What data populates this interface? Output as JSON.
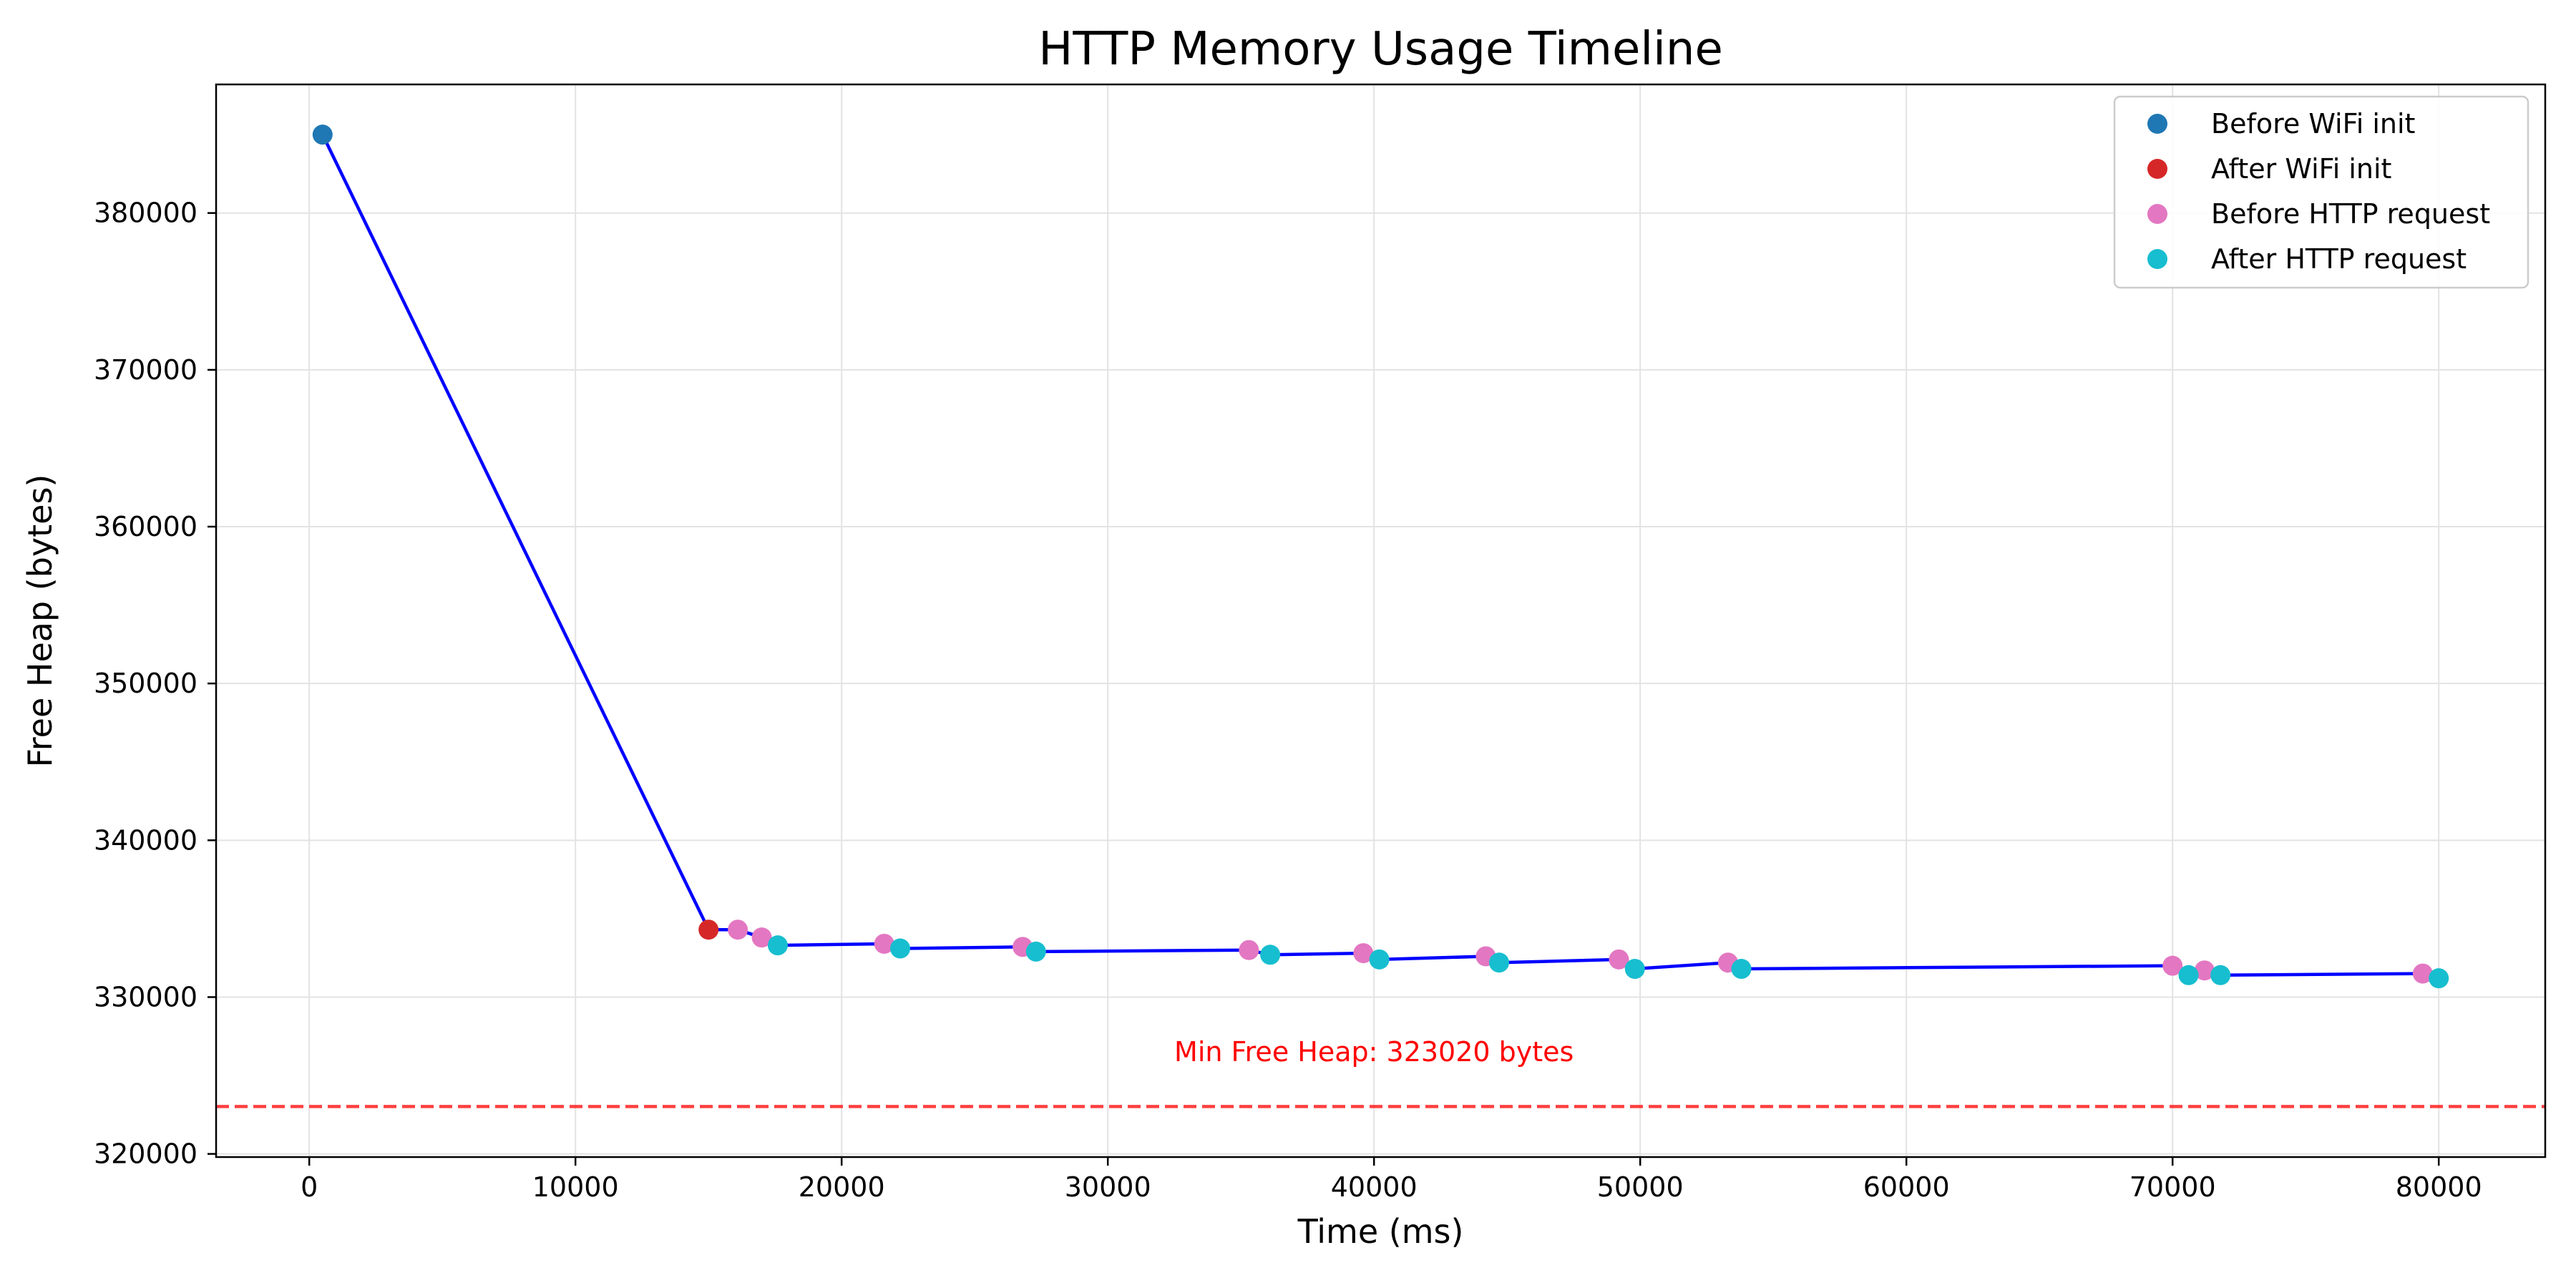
{
  "chart_data": {
    "type": "line",
    "title": "HTTP Memory Usage Timeline",
    "xlabel": "Time (ms)",
    "ylabel": "Free Heap (bytes)",
    "xlim": [
      -3500,
      84000
    ],
    "ylim": [
      319800,
      388200
    ],
    "xticks": [
      0,
      10000,
      20000,
      30000,
      40000,
      50000,
      60000,
      70000,
      80000
    ],
    "yticks": [
      320000,
      330000,
      340000,
      350000,
      360000,
      370000,
      380000
    ],
    "grid": true,
    "legend_position": "top-right",
    "line": {
      "color": "#0000ff",
      "points": [
        [
          500,
          385000
        ],
        [
          15000,
          334300
        ],
        [
          16100,
          334300
        ],
        [
          17000,
          333800
        ],
        [
          17600,
          333300
        ],
        [
          21600,
          333400
        ],
        [
          22200,
          333100
        ],
        [
          26800,
          333200
        ],
        [
          27300,
          332900
        ],
        [
          35300,
          333000
        ],
        [
          36100,
          332700
        ],
        [
          39600,
          332800
        ],
        [
          40200,
          332400
        ],
        [
          44200,
          332600
        ],
        [
          44700,
          332200
        ],
        [
          49200,
          332400
        ],
        [
          49800,
          331800
        ],
        [
          53300,
          332200
        ],
        [
          53800,
          331800
        ],
        [
          70000,
          332000
        ],
        [
          70600,
          331400
        ],
        [
          71200,
          331700
        ],
        [
          71800,
          331400
        ],
        [
          79400,
          331500
        ],
        [
          80000,
          331200
        ]
      ]
    },
    "series": [
      {
        "name": "Before WiFi init",
        "color": "#1f77b4",
        "points": [
          [
            500,
            385000
          ]
        ]
      },
      {
        "name": "After WiFi init",
        "color": "#d62728",
        "points": [
          [
            15000,
            334300
          ]
        ]
      },
      {
        "name": "Before HTTP request",
        "color": "#e377c2",
        "points": [
          [
            16100,
            334300
          ],
          [
            17000,
            333800
          ],
          [
            21600,
            333400
          ],
          [
            26800,
            333200
          ],
          [
            35300,
            333000
          ],
          [
            39600,
            332800
          ],
          [
            44200,
            332600
          ],
          [
            49200,
            332400
          ],
          [
            53300,
            332200
          ],
          [
            70000,
            332000
          ],
          [
            71200,
            331700
          ],
          [
            79400,
            331500
          ]
        ]
      },
      {
        "name": "After HTTP request",
        "color": "#17becf",
        "points": [
          [
            17600,
            333300
          ],
          [
            22200,
            333100
          ],
          [
            27300,
            332900
          ],
          [
            36100,
            332700
          ],
          [
            40200,
            332400
          ],
          [
            44700,
            332200
          ],
          [
            49800,
            331800
          ],
          [
            53800,
            331800
          ],
          [
            70600,
            331400
          ],
          [
            71800,
            331400
          ],
          [
            80000,
            331200
          ]
        ]
      }
    ],
    "reference_line": {
      "value": 323020,
      "color": "#ff0000",
      "style": "dashed",
      "label": "Min Free Heap: 323020 bytes",
      "label_x": 40000,
      "label_y": 326500
    }
  }
}
